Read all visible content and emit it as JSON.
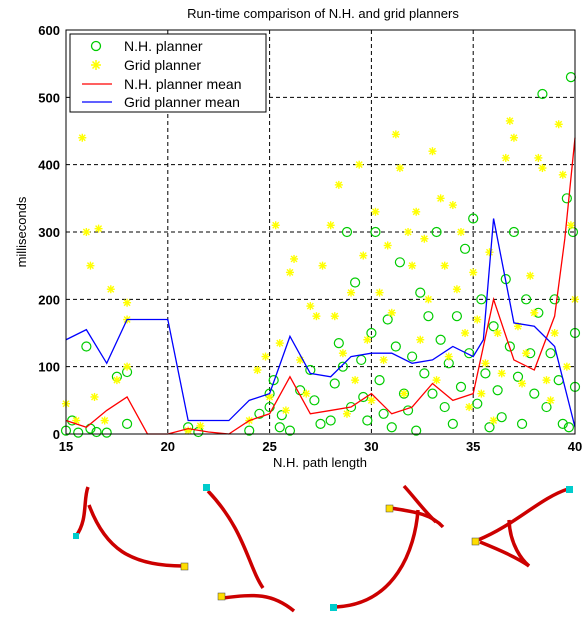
{
  "chart_data": {
    "type": "scatter",
    "title": "Run-time comparison of N.H. and grid planners",
    "xlabel": "N.H. path length",
    "ylabel": "milliseconds",
    "xlim": [
      15,
      40
    ],
    "ylim": [
      0,
      600
    ],
    "xticks": [
      "15",
      "20",
      "25",
      "30",
      "35",
      "40"
    ],
    "yticks": [
      "0",
      "100",
      "200",
      "300",
      "400",
      "500",
      "600"
    ],
    "grid": true,
    "legend_position": "top-left",
    "legend": [
      "N.H. planner",
      "Grid planner",
      "N.H. planner mean",
      "Grid planner mean"
    ],
    "series": [
      {
        "name": "N.H. planner",
        "kind": "scatter",
        "marker": "circle",
        "color": "#00cc00",
        "points": [
          [
            15,
            5
          ],
          [
            15.3,
            20
          ],
          [
            15.6,
            2
          ],
          [
            16,
            130
          ],
          [
            16.2,
            8
          ],
          [
            16.5,
            3
          ],
          [
            17,
            2
          ],
          [
            17.5,
            85
          ],
          [
            18,
            15
          ],
          [
            18,
            92
          ],
          [
            21,
            10
          ],
          [
            21.5,
            3
          ],
          [
            24,
            5
          ],
          [
            24.5,
            30
          ],
          [
            25,
            40
          ],
          [
            25,
            60
          ],
          [
            25.2,
            80
          ],
          [
            25.5,
            10
          ],
          [
            25.6,
            28
          ],
          [
            26,
            5
          ],
          [
            26.5,
            65
          ],
          [
            27,
            95
          ],
          [
            27.2,
            50
          ],
          [
            27.5,
            15
          ],
          [
            28,
            20
          ],
          [
            28.2,
            75
          ],
          [
            28.4,
            135
          ],
          [
            28.6,
            100
          ],
          [
            28.8,
            300
          ],
          [
            29,
            40
          ],
          [
            29.2,
            225
          ],
          [
            29.5,
            110
          ],
          [
            29.6,
            55
          ],
          [
            29.8,
            20
          ],
          [
            30,
            150
          ],
          [
            30.2,
            300
          ],
          [
            30.4,
            80
          ],
          [
            30.6,
            30
          ],
          [
            30.8,
            170
          ],
          [
            31,
            10
          ],
          [
            31.2,
            130
          ],
          [
            31.4,
            255
          ],
          [
            31.6,
            60
          ],
          [
            31.8,
            35
          ],
          [
            32,
            115
          ],
          [
            32.2,
            5
          ],
          [
            32.4,
            210
          ],
          [
            32.6,
            90
          ],
          [
            32.8,
            175
          ],
          [
            33,
            60
          ],
          [
            33.2,
            300
          ],
          [
            33.4,
            140
          ],
          [
            33.6,
            40
          ],
          [
            33.8,
            105
          ],
          [
            34,
            15
          ],
          [
            34.2,
            175
          ],
          [
            34.4,
            70
          ],
          [
            34.6,
            275
          ],
          [
            34.8,
            120
          ],
          [
            35,
            320
          ],
          [
            35.2,
            45
          ],
          [
            35.4,
            200
          ],
          [
            35.6,
            90
          ],
          [
            35.8,
            10
          ],
          [
            36,
            160
          ],
          [
            36.2,
            65
          ],
          [
            36.4,
            25
          ],
          [
            36.6,
            230
          ],
          [
            36.8,
            130
          ],
          [
            37,
            300
          ],
          [
            37.2,
            85
          ],
          [
            37.4,
            15
          ],
          [
            37.6,
            200
          ],
          [
            37.8,
            120
          ],
          [
            38,
            60
          ],
          [
            38.2,
            180
          ],
          [
            38.4,
            505
          ],
          [
            38.6,
            40
          ],
          [
            38.8,
            120
          ],
          [
            39,
            200
          ],
          [
            39.2,
            80
          ],
          [
            39.4,
            15
          ],
          [
            39.6,
            350
          ],
          [
            39.8,
            530
          ],
          [
            40,
            150
          ],
          [
            40,
            70
          ],
          [
            39.9,
            300
          ],
          [
            39.7,
            10
          ]
        ]
      },
      {
        "name": "Grid planner",
        "kind": "scatter",
        "marker": "asterisk",
        "color": "#ffff00",
        "points": [
          [
            15,
            45
          ],
          [
            15.5,
            20
          ],
          [
            15.8,
            440
          ],
          [
            16,
            300
          ],
          [
            16.2,
            250
          ],
          [
            16.4,
            55
          ],
          [
            16.6,
            305
          ],
          [
            16.9,
            20
          ],
          [
            17.2,
            215
          ],
          [
            17.5,
            80
          ],
          [
            18,
            195
          ],
          [
            18,
            170
          ],
          [
            18,
            100
          ],
          [
            21,
            5
          ],
          [
            21.6,
            12
          ],
          [
            24,
            20
          ],
          [
            24.4,
            95
          ],
          [
            24.8,
            115
          ],
          [
            25,
            55
          ],
          [
            25.3,
            310
          ],
          [
            25.5,
            135
          ],
          [
            25.8,
            35
          ],
          [
            26,
            240
          ],
          [
            26.2,
            260
          ],
          [
            26.5,
            110
          ],
          [
            26.8,
            60
          ],
          [
            27,
            190
          ],
          [
            27.3,
            175
          ],
          [
            27.6,
            250
          ],
          [
            28,
            310
          ],
          [
            28.2,
            175
          ],
          [
            28.4,
            370
          ],
          [
            28.6,
            120
          ],
          [
            28.8,
            30
          ],
          [
            29,
            210
          ],
          [
            29.2,
            80
          ],
          [
            29.4,
            400
          ],
          [
            29.6,
            265
          ],
          [
            29.8,
            140
          ],
          [
            30,
            50
          ],
          [
            30.2,
            330
          ],
          [
            30.4,
            210
          ],
          [
            30.6,
            110
          ],
          [
            30.8,
            280
          ],
          [
            31,
            180
          ],
          [
            31.2,
            445
          ],
          [
            31.4,
            395
          ],
          [
            31.6,
            60
          ],
          [
            31.8,
            300
          ],
          [
            32,
            250
          ],
          [
            32.2,
            330
          ],
          [
            32.4,
            140
          ],
          [
            32.6,
            290
          ],
          [
            32.8,
            200
          ],
          [
            33,
            420
          ],
          [
            33.2,
            80
          ],
          [
            33.4,
            350
          ],
          [
            33.6,
            250
          ],
          [
            33.8,
            115
          ],
          [
            34,
            340
          ],
          [
            34.2,
            215
          ],
          [
            34.4,
            300
          ],
          [
            34.6,
            150
          ],
          [
            34.8,
            40
          ],
          [
            35,
            240
          ],
          [
            35.2,
            170
          ],
          [
            35.4,
            60
          ],
          [
            35.6,
            105
          ],
          [
            35.8,
            270
          ],
          [
            36,
            20
          ],
          [
            36.2,
            150
          ],
          [
            36.4,
            90
          ],
          [
            36.6,
            410
          ],
          [
            36.8,
            465
          ],
          [
            37,
            440
          ],
          [
            37.2,
            160
          ],
          [
            37.4,
            75
          ],
          [
            37.6,
            120
          ],
          [
            37.8,
            235
          ],
          [
            38,
            180
          ],
          [
            38.2,
            410
          ],
          [
            38.4,
            395
          ],
          [
            38.6,
            80
          ],
          [
            38.8,
            50
          ],
          [
            39,
            150
          ],
          [
            39.2,
            460
          ],
          [
            39.4,
            385
          ],
          [
            39.6,
            100
          ],
          [
            39.8,
            310
          ],
          [
            40,
            200
          ]
        ]
      },
      {
        "name": "N.H. planner mean",
        "kind": "line",
        "color": "#ff0000",
        "x": [
          15,
          16,
          17,
          18,
          19,
          20,
          21,
          22,
          23,
          24,
          25,
          26,
          27,
          28,
          29,
          30,
          31,
          32,
          33,
          34,
          35,
          36,
          37,
          38,
          39,
          39.5,
          40
        ],
        "y": [
          20,
          10,
          35,
          55,
          0,
          0,
          8,
          3,
          0,
          20,
          30,
          85,
          30,
          35,
          40,
          60,
          30,
          40,
          75,
          50,
          60,
          200,
          110,
          95,
          175,
          290,
          440
        ]
      },
      {
        "name": "Grid planner mean",
        "kind": "line",
        "color": "#0000ff",
        "x": [
          15,
          16,
          17,
          18,
          19,
          20,
          21,
          22,
          23,
          24,
          25,
          26,
          27,
          28,
          29,
          30,
          31,
          32,
          33,
          34,
          35,
          35.5,
          36,
          37,
          38,
          39,
          40
        ],
        "y": [
          140,
          155,
          105,
          170,
          170,
          170,
          20,
          20,
          20,
          50,
          60,
          145,
          90,
          85,
          115,
          120,
          120,
          105,
          110,
          130,
          115,
          140,
          320,
          165,
          160,
          130,
          10
        ]
      }
    ]
  },
  "thumbnails": {
    "path_color": "#cc0000",
    "start_marker_color": "#00cccc",
    "end_marker_color": "#ffdd00"
  }
}
